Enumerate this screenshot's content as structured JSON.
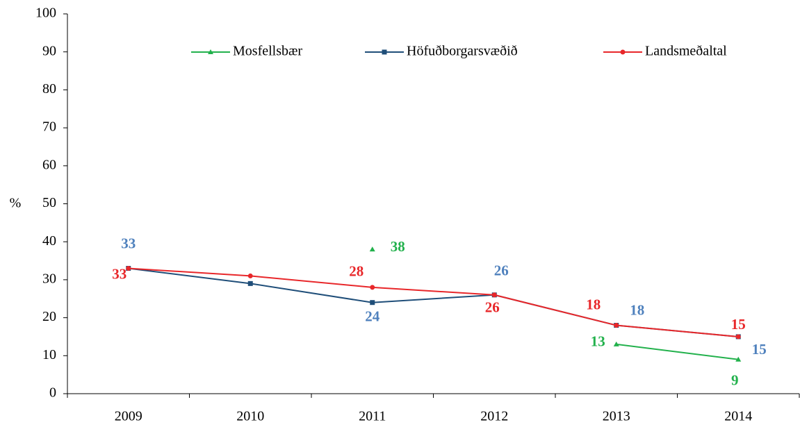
{
  "chart_data": {
    "type": "line",
    "y_label": "%",
    "categories": [
      "2009",
      "2010",
      "2011",
      "2012",
      "2013",
      "2014"
    ],
    "series": [
      {
        "name": "Mosfellsbær",
        "color": "#22b14c",
        "marker": "triangle",
        "values": [
          null,
          null,
          38,
          null,
          13,
          9
        ]
      },
      {
        "name": "Höfuðborgarsvæðið",
        "color": "#1f4e79",
        "label_color": "#4f81bd",
        "marker": "square",
        "values": [
          33,
          29,
          24,
          26,
          18,
          15
        ]
      },
      {
        "name": "Landsmeðaltal",
        "color": "#e8272a",
        "marker": "circle",
        "values": [
          33,
          31,
          28,
          26,
          18,
          15
        ]
      }
    ],
    "ylim": [
      0,
      100
    ],
    "yticks": [
      0,
      10,
      20,
      30,
      40,
      50,
      60,
      70,
      80,
      90,
      100
    ],
    "legend": "top"
  }
}
